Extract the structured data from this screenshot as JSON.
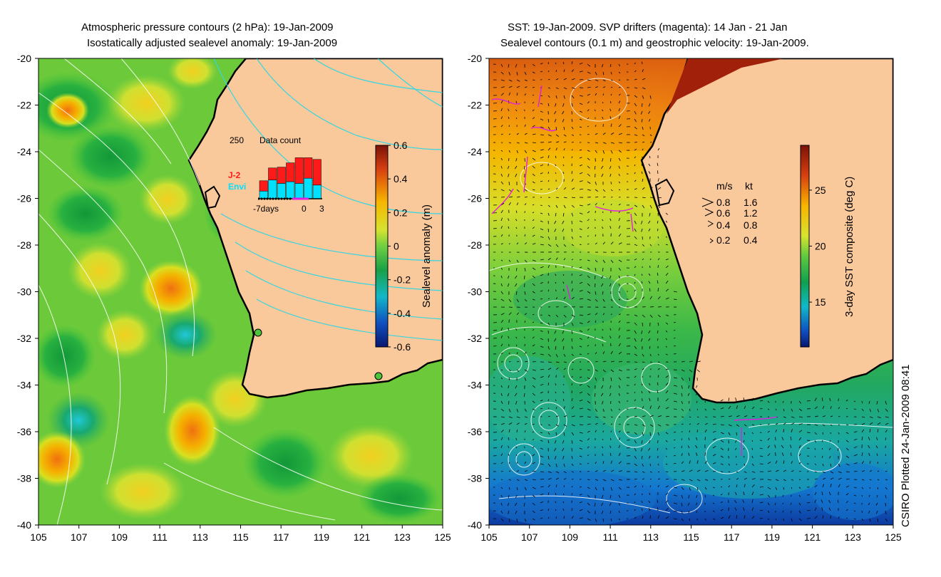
{
  "titles": {
    "left_line1": "Atmospheric pressure contours (2 hPa): 19-Jan-2009",
    "left_line2": "Isostatically adjusted sealevel anomaly: 19-Jan-2009",
    "right_line1": "SST: 19-Jan-2009. SVP drifters (magenta): 14 Jan - 21 Jan",
    "right_line2": "Sealevel contours (0.1 m) and geostrophic velocity: 19-Jan-2009."
  },
  "credit": "CSIRO Plotted 24-Jan-2009 08:41",
  "colors": {
    "land": "#f9c89b",
    "sea_green": "#4cc53a",
    "coast": "#000000",
    "pressure_contour": "#36d6e0",
    "ssh_contour": "#ffffff",
    "jason": "#ff1a1a",
    "envi": "#00e0ff",
    "drifter": "#e020e0"
  },
  "chart_data": [
    {
      "type": "heatmap",
      "name": "sealevel_anomaly_map",
      "title": "Atmospheric pressure contours (2 hPa): 19-Jan-2009 / Isostatically adjusted sealevel anomaly: 19-Jan-2009",
      "xlabel": "",
      "ylabel": "",
      "xlim": [
        105,
        125
      ],
      "ylim": [
        -40,
        -20
      ],
      "x_ticks": [
        "105",
        "107",
        "109",
        "111",
        "113",
        "115",
        "117",
        "119",
        "121",
        "123",
        "125"
      ],
      "y_ticks": [
        "-20",
        "-22",
        "-24",
        "-26",
        "-28",
        "-30",
        "-32",
        "-34",
        "-36",
        "-38",
        "-40"
      ],
      "colorbar": {
        "label": "Sealevel anomaly (m)",
        "range": [
          -0.6,
          0.6
        ],
        "ticks": [
          "0.6",
          "0.4",
          "0.2",
          "0",
          "-0.2",
          "-0.4",
          "-0.6"
        ]
      },
      "tide_gauges": [
        {
          "lon": 115.9,
          "lat": -31.9
        },
        {
          "lon": 121.9,
          "lat": -33.8
        }
      ],
      "inset_bar": {
        "title": "Data count",
        "ymax_label": "250",
        "legend": [
          "J-2",
          "Envi"
        ],
        "x_labels": [
          "-7days",
          "0",
          "3"
        ],
        "jason": [
          60,
          70,
          95,
          110,
          150,
          120,
          150
        ],
        "envi": [
          45,
          110,
          90,
          100,
          90,
          120,
          80
        ]
      }
    },
    {
      "type": "heatmap",
      "name": "sst_map",
      "title": "SST: 19-Jan-2009. SVP drifters (magenta): 14 Jan - 21 Jan / Sealevel contours (0.1 m) and geostrophic velocity: 19-Jan-2009.",
      "xlim": [
        105,
        125
      ],
      "ylim": [
        -40,
        -20
      ],
      "x_ticks": [
        "105",
        "107",
        "109",
        "111",
        "113",
        "115",
        "117",
        "119",
        "121",
        "123",
        "125"
      ],
      "y_ticks": [
        "-20",
        "-22",
        "-24",
        "-26",
        "-28",
        "-30",
        "-32",
        "-34",
        "-36",
        "-38",
        "-40"
      ],
      "colorbar": {
        "label": "3-day SST composite (deg C)",
        "range": [
          11,
          29
        ],
        "ticks": [
          "25",
          "20",
          "15"
        ]
      },
      "velocity_legend": {
        "header_ms": "m/s",
        "header_kt": "kt",
        "rows": [
          {
            "ms": "0.8",
            "kt": "1.6"
          },
          {
            "ms": "0.6",
            "kt": "1.2"
          },
          {
            "ms": "0.4",
            "kt": "0.8"
          },
          {
            "ms": "0.2",
            "kt": "0.4"
          }
        ]
      }
    }
  ]
}
